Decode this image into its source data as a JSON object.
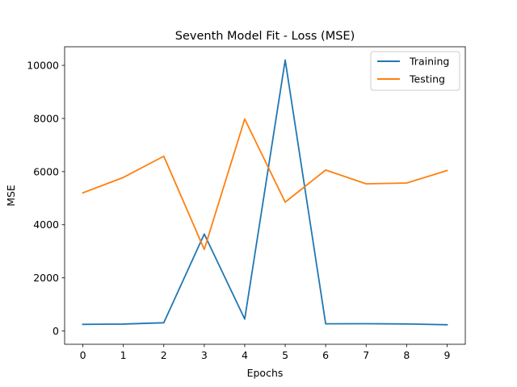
{
  "chart_data": {
    "type": "line",
    "title": "Seventh Model Fit - Loss (MSE)",
    "xlabel": "Epochs",
    "ylabel": "MSE",
    "x": [
      0,
      1,
      2,
      3,
      4,
      5,
      6,
      7,
      8,
      9
    ],
    "xticks": [
      "0",
      "1",
      "2",
      "3",
      "4",
      "5",
      "6",
      "7",
      "8",
      "9"
    ],
    "xlim": [
      -0.45,
      9.45
    ],
    "yticks": [
      "0",
      "2000",
      "4000",
      "6000",
      "8000",
      "10000"
    ],
    "ylim": [
      -500,
      10700
    ],
    "grid": false,
    "legend_position": "upper right",
    "series": [
      {
        "name": "Training",
        "color": "#1f77b4",
        "values": [
          250,
          260,
          310,
          3650,
          450,
          10200,
          270,
          275,
          265,
          235
        ]
      },
      {
        "name": "Testing",
        "color": "#ff7f0e",
        "values": [
          5200,
          5780,
          6580,
          3070,
          7980,
          4850,
          6060,
          5540,
          5570,
          6040
        ]
      }
    ]
  }
}
